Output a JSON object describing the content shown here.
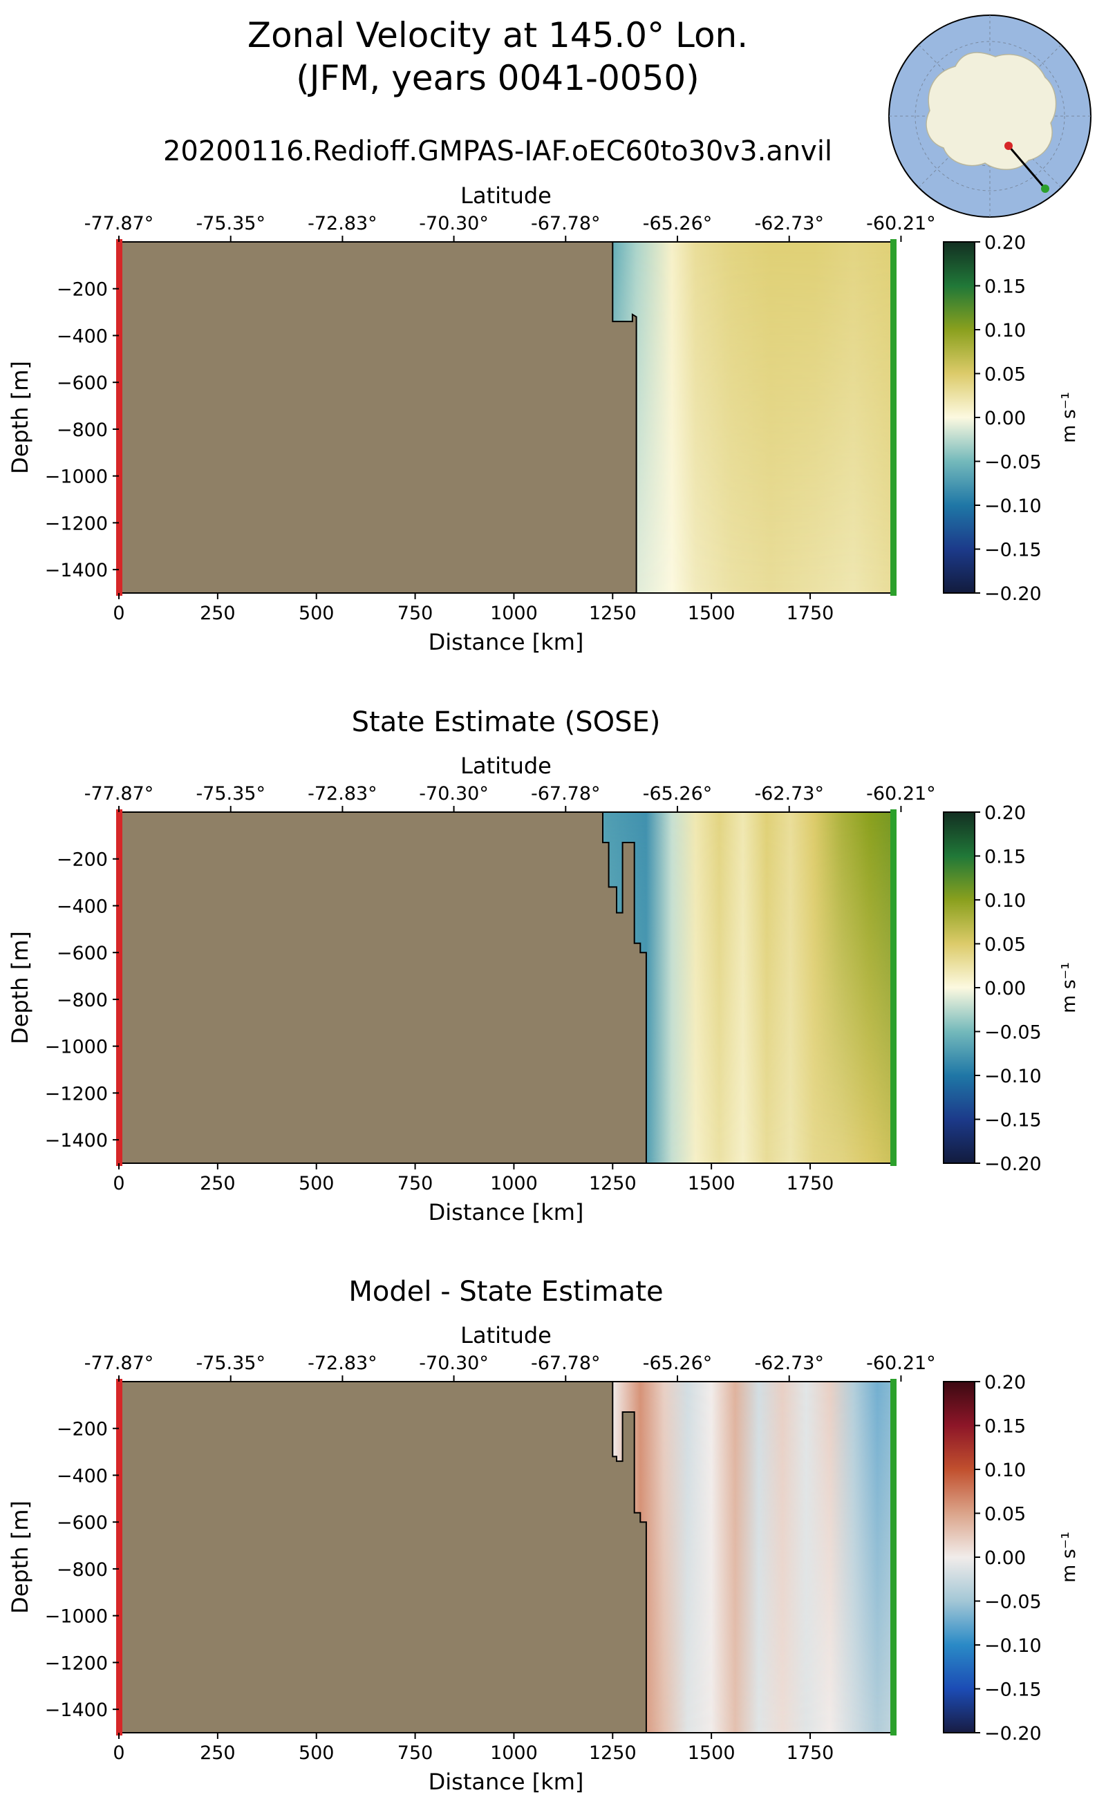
{
  "figure": {
    "title_line1": "Zonal Velocity at 145.0° Lon.",
    "title_line2": "(JFM, years 0041-0050)",
    "subtitle": "20200116.Redioff.GMPAS-IAF.oEC60to30v3.anvil"
  },
  "colors": {
    "land": "#8f8066",
    "start_marker": "#d62728",
    "end_marker": "#2ca02c",
    "ocean_map": "#9ab8e0",
    "antarctica": "#f2f0dc"
  },
  "inset_map": {
    "icon": "antarctica-polar-map-icon",
    "description_visible": false
  },
  "chart_data": [
    {
      "type": "heatmap",
      "title": "",
      "xlabel": "Distance [km]",
      "ylabel": "Depth [m]",
      "top_xlabel": "Latitude",
      "xlim": [
        0,
        1960
      ],
      "ylim": [
        -1500,
        0
      ],
      "x_ticks": [
        0,
        250,
        500,
        750,
        1000,
        1250,
        1500,
        1750
      ],
      "y_ticks": [
        -200,
        -400,
        -600,
        -800,
        -1000,
        -1200,
        -1400
      ],
      "lat_ticks": [
        "-77.87°",
        "-75.35°",
        "-72.83°",
        "-70.30°",
        "-67.78°",
        "-65.26°",
        "-62.73°",
        "-60.21°"
      ],
      "lat_tick_positions_km": [
        0,
        283,
        566,
        848,
        1131,
        1414,
        1697,
        1980
      ],
      "colorbar": {
        "label": "m s⁻¹",
        "ticks": [
          "0.20",
          "0.15",
          "0.10",
          "0.05",
          "0.00",
          "−0.05",
          "−0.10",
          "−0.15",
          "−0.20"
        ],
        "range": [
          -0.2,
          0.2
        ],
        "colormap": "delta"
      },
      "land_boundary": [
        [
          0,
          0
        ],
        [
          1250,
          0
        ],
        [
          1250,
          -340
        ],
        [
          1300,
          -340
        ],
        [
          1300,
          -310
        ],
        [
          1310,
          -320
        ],
        [
          1310,
          -1500
        ],
        [
          0,
          -1500
        ]
      ],
      "velocity_columns": [
        {
          "x": 1250,
          "surface": -0.06,
          "bottom": -0.02
        },
        {
          "x": 1310,
          "surface": -0.03,
          "bottom": -0.01
        },
        {
          "x": 1400,
          "surface": 0.01,
          "bottom": 0.0
        },
        {
          "x": 1460,
          "surface": 0.03,
          "bottom": 0.015
        },
        {
          "x": 1550,
          "surface": 0.04,
          "bottom": 0.025
        },
        {
          "x": 1650,
          "surface": 0.045,
          "bottom": 0.03
        },
        {
          "x": 1760,
          "surface": 0.045,
          "bottom": 0.025
        },
        {
          "x": 1860,
          "surface": 0.04,
          "bottom": 0.02
        },
        {
          "x": 1960,
          "surface": 0.045,
          "bottom": 0.03
        }
      ]
    },
    {
      "type": "heatmap",
      "title": "State Estimate (SOSE)",
      "xlabel": "Distance [km]",
      "ylabel": "Depth [m]",
      "top_xlabel": "Latitude",
      "xlim": [
        0,
        1960
      ],
      "ylim": [
        -1500,
        0
      ],
      "x_ticks": [
        0,
        250,
        500,
        750,
        1000,
        1250,
        1500,
        1750
      ],
      "y_ticks": [
        -200,
        -400,
        -600,
        -800,
        -1000,
        -1200,
        -1400
      ],
      "lat_ticks": [
        "-77.87°",
        "-75.35°",
        "-72.83°",
        "-70.30°",
        "-67.78°",
        "-65.26°",
        "-62.73°",
        "-60.21°"
      ],
      "lat_tick_positions_km": [
        0,
        283,
        566,
        848,
        1131,
        1414,
        1697,
        1980
      ],
      "colorbar": {
        "label": "m s⁻¹",
        "ticks": [
          "0.20",
          "0.15",
          "0.10",
          "0.05",
          "0.00",
          "−0.05",
          "−0.10",
          "−0.15",
          "−0.20"
        ],
        "range": [
          -0.2,
          0.2
        ],
        "colormap": "delta"
      },
      "land_boundary": [
        [
          0,
          0
        ],
        [
          1225,
          0
        ],
        [
          1225,
          -130
        ],
        [
          1240,
          -130
        ],
        [
          1240,
          -320
        ],
        [
          1260,
          -320
        ],
        [
          1260,
          -430
        ],
        [
          1275,
          -430
        ],
        [
          1275,
          -130
        ],
        [
          1305,
          -130
        ],
        [
          1305,
          -560
        ],
        [
          1320,
          -560
        ],
        [
          1320,
          -600
        ],
        [
          1335,
          -600
        ],
        [
          1335,
          -1500
        ],
        [
          0,
          -1500
        ]
      ],
      "velocity_columns": [
        {
          "x": 1225,
          "surface": -0.07,
          "bottom": -0.05
        },
        {
          "x": 1335,
          "surface": -0.08,
          "bottom": -0.07
        },
        {
          "x": 1400,
          "surface": -0.02,
          "bottom": -0.02
        },
        {
          "x": 1460,
          "surface": 0.02,
          "bottom": 0.01
        },
        {
          "x": 1520,
          "surface": 0.04,
          "bottom": 0.025
        },
        {
          "x": 1580,
          "surface": 0.02,
          "bottom": 0.01
        },
        {
          "x": 1640,
          "surface": 0.045,
          "bottom": 0.03
        },
        {
          "x": 1700,
          "surface": 0.03,
          "bottom": 0.02
        },
        {
          "x": 1760,
          "surface": 0.05,
          "bottom": 0.035
        },
        {
          "x": 1830,
          "surface": 0.08,
          "bottom": 0.04
        },
        {
          "x": 1900,
          "surface": 0.1,
          "bottom": 0.05
        },
        {
          "x": 1960,
          "surface": 0.11,
          "bottom": 0.06
        }
      ]
    },
    {
      "type": "heatmap",
      "title": "Model - State Estimate",
      "xlabel": "Distance [km]",
      "ylabel": "Depth [m]",
      "top_xlabel": "Latitude",
      "xlim": [
        0,
        1960
      ],
      "ylim": [
        -1500,
        0
      ],
      "x_ticks": [
        0,
        250,
        500,
        750,
        1000,
        1250,
        1500,
        1750
      ],
      "y_ticks": [
        -200,
        -400,
        -600,
        -800,
        -1000,
        -1200,
        -1400
      ],
      "lat_ticks": [
        "-77.87°",
        "-75.35°",
        "-72.83°",
        "-70.30°",
        "-67.78°",
        "-65.26°",
        "-62.73°",
        "-60.21°"
      ],
      "lat_tick_positions_km": [
        0,
        283,
        566,
        848,
        1131,
        1414,
        1697,
        1980
      ],
      "colorbar": {
        "label": "m s⁻¹",
        "ticks": [
          "0.20",
          "0.15",
          "0.10",
          "0.05",
          "0.00",
          "−0.05",
          "−0.10",
          "−0.15",
          "−0.20"
        ],
        "range": [
          -0.2,
          0.2
        ],
        "colormap": "balance"
      },
      "land_boundary": [
        [
          0,
          0
        ],
        [
          1250,
          0
        ],
        [
          1250,
          -320
        ],
        [
          1260,
          -320
        ],
        [
          1260,
          -340
        ],
        [
          1275,
          -340
        ],
        [
          1275,
          -130
        ],
        [
          1305,
          -130
        ],
        [
          1305,
          -560
        ],
        [
          1320,
          -560
        ],
        [
          1320,
          -600
        ],
        [
          1335,
          -600
        ],
        [
          1335,
          -1500
        ],
        [
          0,
          -1500
        ]
      ],
      "velocity_columns": [
        {
          "x": 1250,
          "surface": 0.0,
          "bottom": 0.0
        },
        {
          "x": 1320,
          "surface": 0.06,
          "bottom": 0.06
        },
        {
          "x": 1380,
          "surface": 0.02,
          "bottom": 0.03
        },
        {
          "x": 1440,
          "surface": -0.02,
          "bottom": -0.01
        },
        {
          "x": 1500,
          "surface": 0.0,
          "bottom": 0.0
        },
        {
          "x": 1560,
          "surface": 0.04,
          "bottom": 0.03
        },
        {
          "x": 1620,
          "surface": -0.02,
          "bottom": -0.01
        },
        {
          "x": 1680,
          "surface": 0.02,
          "bottom": 0.01
        },
        {
          "x": 1740,
          "surface": -0.01,
          "bottom": -0.01
        },
        {
          "x": 1800,
          "surface": 0.02,
          "bottom": 0.0
        },
        {
          "x": 1860,
          "surface": -0.04,
          "bottom": -0.02
        },
        {
          "x": 1920,
          "surface": -0.07,
          "bottom": -0.04
        },
        {
          "x": 1960,
          "surface": -0.06,
          "bottom": -0.03
        }
      ]
    }
  ]
}
